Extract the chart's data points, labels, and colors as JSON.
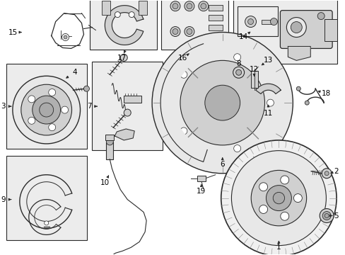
{
  "bg_color": "#ffffff",
  "fig_width": 4.89,
  "fig_height": 3.6,
  "dpi": 100,
  "lc": "#2a2a2a",
  "gray_fill": "#e8e8e8",
  "gray_mid": "#d0d0d0",
  "gray_dark": "#b0b0b0",
  "box_fill": "#ececec",
  "label_fontsize": 7.5
}
